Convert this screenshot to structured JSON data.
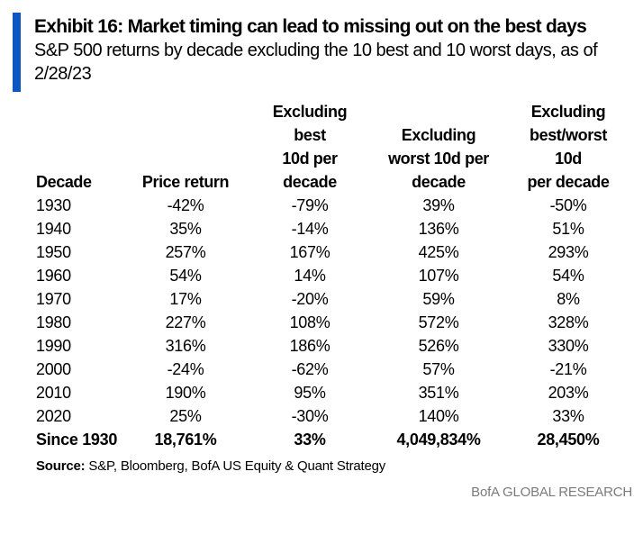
{
  "colors": {
    "accent": "#0d57c2",
    "brand_text": "#7b7b7b"
  },
  "header": {
    "title": "Exhibit 16: Market timing can lead to missing out on the best days",
    "subtitle": "S&P 500 returns by decade excluding the 10 best and 10 worst days, as of 2/28/23"
  },
  "table": {
    "column_headers": [
      {
        "lines": [
          "Decade"
        ]
      },
      {
        "lines": [
          "Price return"
        ]
      },
      {
        "lines": [
          "Excluding",
          "best",
          "10d per",
          "decade"
        ]
      },
      {
        "lines": [
          "Excluding",
          "worst 10d per",
          "decade"
        ]
      },
      {
        "lines": [
          "Excluding",
          "best/worst",
          "10d",
          "per decade"
        ]
      }
    ],
    "rows": [
      [
        "1930",
        "-42%",
        "-79%",
        "39%",
        "-50%"
      ],
      [
        "1940",
        "35%",
        "-14%",
        "136%",
        "51%"
      ],
      [
        "1950",
        "257%",
        "167%",
        "425%",
        "293%"
      ],
      [
        "1960",
        "54%",
        "14%",
        "107%",
        "54%"
      ],
      [
        "1970",
        "17%",
        "-20%",
        "59%",
        "8%"
      ],
      [
        "1980",
        "227%",
        "108%",
        "572%",
        "328%"
      ],
      [
        "1990",
        "316%",
        "186%",
        "526%",
        "330%"
      ],
      [
        "2000",
        "-24%",
        "-62%",
        "57%",
        "-21%"
      ],
      [
        "2010",
        "190%",
        "95%",
        "351%",
        "203%"
      ],
      [
        "2020",
        "25%",
        "-30%",
        "140%",
        "33%"
      ]
    ],
    "total_row": [
      "Since 1930",
      "18,761%",
      "33%",
      "4,049,834%",
      "28,450%"
    ]
  },
  "footer": {
    "source_label": "Source:",
    "source_text": "S&P, Bloomberg, BofA US Equity & Quant Strategy",
    "brand": "BofA GLOBAL RESEARCH"
  },
  "chart_data": {
    "type": "table",
    "title": "Exhibit 16: Market timing can lead to missing out on the best days",
    "subtitle": "S&P 500 returns by decade excluding the 10 best and 10 worst days, as of 2/28/23",
    "columns": [
      "Decade",
      "Price return",
      "Excluding best 10d per decade",
      "Excluding worst 10d per decade",
      "Excluding best/worst 10d per decade"
    ],
    "units": "percent",
    "rows": [
      [
        "1930",
        -42,
        -79,
        39,
        -50
      ],
      [
        "1940",
        35,
        -14,
        136,
        51
      ],
      [
        "1950",
        257,
        167,
        425,
        293
      ],
      [
        "1960",
        54,
        14,
        107,
        54
      ],
      [
        "1970",
        17,
        -20,
        59,
        8
      ],
      [
        "1980",
        227,
        108,
        572,
        328
      ],
      [
        "1990",
        316,
        186,
        526,
        330
      ],
      [
        "2000",
        -24,
        -62,
        57,
        -21
      ],
      [
        "2010",
        190,
        95,
        351,
        203
      ],
      [
        "2020",
        25,
        -30,
        140,
        33
      ]
    ],
    "total_row": [
      "Since 1930",
      18761,
      33,
      4049834,
      28450
    ],
    "source": "S&P, Bloomberg, BofA US Equity & Quant Strategy",
    "branding": "BofA GLOBAL RESEARCH"
  }
}
